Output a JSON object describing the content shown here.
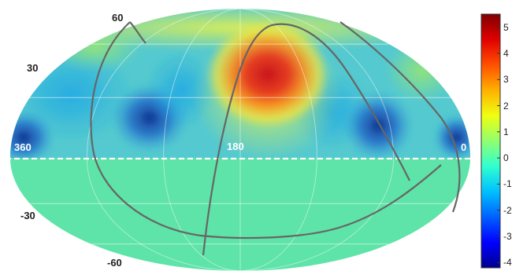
{
  "map": {
    "projection": "mollweide",
    "lat_labels": [
      "60",
      "30",
      "-30",
      "-60"
    ],
    "lon_labels": [
      "360",
      "180",
      "0"
    ],
    "masked_region": "southern hemisphere (flat fill)",
    "mask_color": "#5ee3a8",
    "outline_color": "#666666"
  },
  "colorbar": {
    "ticks": [
      "5",
      "4",
      "3",
      "2",
      "1",
      "0",
      "-1",
      "-2",
      "-3",
      "-4"
    ],
    "range": [
      -4.2,
      5.5
    ],
    "colormap": "jet"
  }
}
